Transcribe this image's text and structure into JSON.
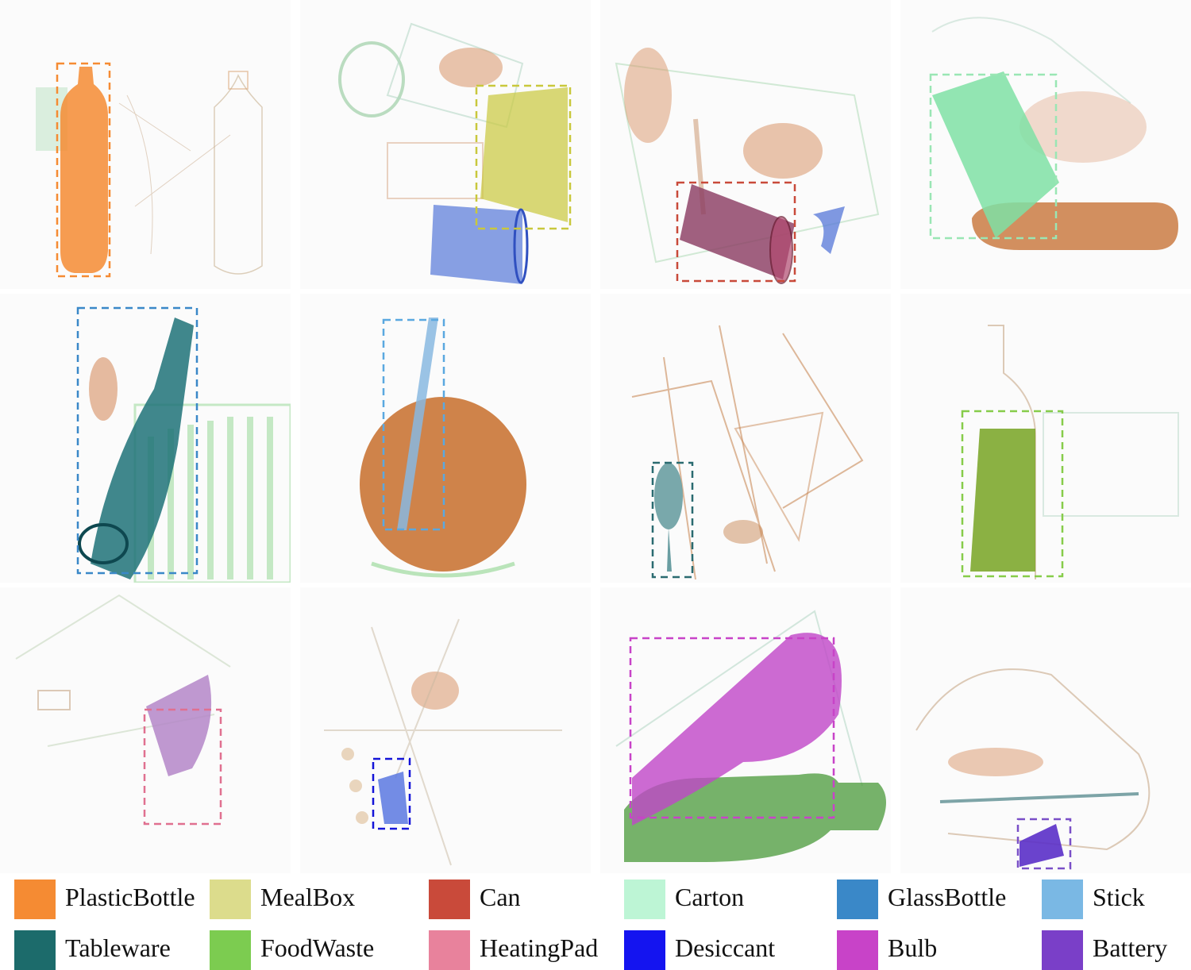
{
  "legend": {
    "items": [
      {
        "label": "PlasticBottle",
        "color": "#f58b33"
      },
      {
        "label": "MealBox",
        "color": "#dcdc8c"
      },
      {
        "label": "Can",
        "color": "#c94a3a"
      },
      {
        "label": "Carton",
        "color": "#bdf5d5"
      },
      {
        "label": "GlassBottle",
        "color": "#3a88c8"
      },
      {
        "label": "Stick",
        "color": "#7ab8e4"
      },
      {
        "label": "Tableware",
        "color": "#1c6b6b"
      },
      {
        "label": "FoodWaste",
        "color": "#7ccc50"
      },
      {
        "label": "HeatingPad",
        "color": "#e8829c"
      },
      {
        "label": "Desiccant",
        "color": "#1414f0"
      },
      {
        "label": "Bulb",
        "color": "#c843c8"
      },
      {
        "label": "Battery",
        "color": "#7a3fc8"
      }
    ]
  },
  "panels": [
    {
      "category": "PlasticBottle",
      "color": "#f58b33"
    },
    {
      "category": "MealBox",
      "color": "#c9c83c"
    },
    {
      "category": "Can",
      "color": "#c94a3a"
    },
    {
      "category": "Carton",
      "color": "#9ae6b4"
    },
    {
      "category": "GlassBottle",
      "color": "#3a88c8"
    },
    {
      "category": "Stick",
      "color": "#5aa8e0"
    },
    {
      "category": "Tableware",
      "color": "#2a6b70"
    },
    {
      "category": "FoodWaste",
      "color": "#86cc4a"
    },
    {
      "category": "HeatingPad",
      "color": "#e07090"
    },
    {
      "category": "Desiccant",
      "color": "#1414d8"
    },
    {
      "category": "Bulb",
      "color": "#c843c8"
    },
    {
      "category": "Battery",
      "color": "#7a4fc8"
    }
  ]
}
